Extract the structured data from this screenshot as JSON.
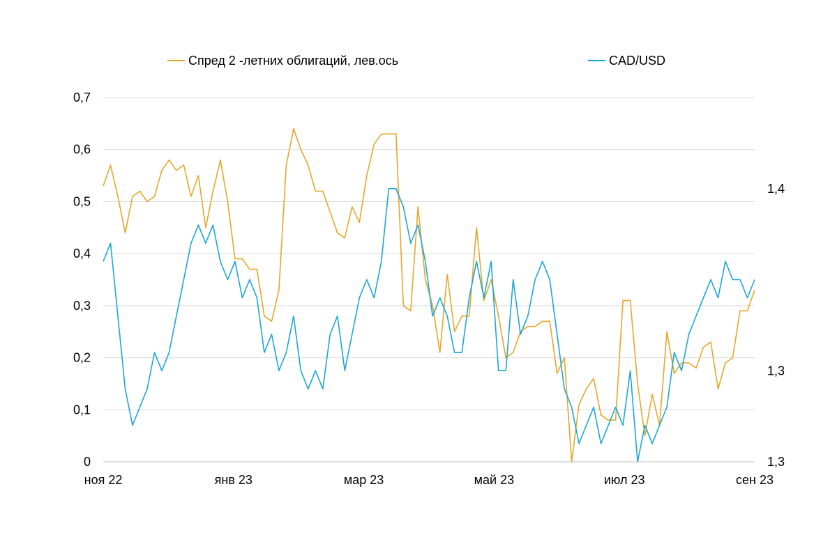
{
  "chart_data": {
    "type": "line",
    "title": "",
    "xlabel": "",
    "ylabel": "",
    "x_ticks": [
      "ноя 22",
      "янв 23",
      "мар 23",
      "май 23",
      "июл 23",
      "сен 23"
    ],
    "y_left": {
      "ticks": [
        "0",
        "0,1",
        "0,2",
        "0,3",
        "0,4",
        "0,5",
        "0,6",
        "0,7"
      ],
      "range": [
        0,
        0.7
      ]
    },
    "y_right": {
      "ticks": [
        "1,3",
        "1,3",
        "1,4"
      ],
      "tick_values": [
        1.25,
        1.3,
        1.4
      ],
      "range": [
        1.25,
        1.45
      ]
    },
    "grid": "horizontal",
    "legend": "top",
    "series": [
      {
        "name": "Спред 2 -летних облигаций, лев.ось",
        "axis": "left",
        "color": "#e8a628",
        "points": [
          [
            "ноя 22",
            0.53
          ],
          [
            "",
            0.57
          ],
          [
            "",
            0.51
          ],
          [
            "",
            0.44
          ],
          [
            "",
            0.51
          ],
          [
            "",
            0.52
          ],
          [
            "",
            0.5
          ],
          [
            "",
            0.51
          ],
          [
            "",
            0.56
          ],
          [
            "",
            0.58
          ],
          [
            "",
            0.56
          ],
          [
            "",
            0.57
          ],
          [
            "",
            0.51
          ],
          [
            "",
            0.55
          ],
          [
            "",
            0.45
          ],
          [
            "",
            0.52
          ],
          [
            "",
            0.58
          ],
          [
            "",
            0.5
          ],
          [
            "",
            0.39
          ],
          [
            "",
            0.39
          ],
          [
            "",
            0.37
          ],
          [
            "янв 23",
            0.37
          ],
          [
            "",
            0.28
          ],
          [
            "",
            0.27
          ],
          [
            "",
            0.33
          ],
          [
            "",
            0.57
          ],
          [
            "",
            0.64
          ],
          [
            "",
            0.6
          ],
          [
            "",
            0.57
          ],
          [
            "",
            0.52
          ],
          [
            "",
            0.52
          ],
          [
            "",
            0.48
          ],
          [
            "",
            0.44
          ],
          [
            "",
            0.43
          ],
          [
            "",
            0.49
          ],
          [
            "",
            0.46
          ],
          [
            "",
            0.55
          ],
          [
            "",
            0.61
          ],
          [
            "",
            0.63
          ],
          [
            "",
            0.63
          ],
          [
            "мар 23",
            0.63
          ],
          [
            "",
            0.3
          ],
          [
            "",
            0.29
          ],
          [
            "",
            0.49
          ],
          [
            "",
            0.35
          ],
          [
            "",
            0.3
          ],
          [
            "",
            0.21
          ],
          [
            "",
            0.36
          ],
          [
            "",
            0.25
          ],
          [
            "",
            0.28
          ],
          [
            "",
            0.28
          ],
          [
            "",
            0.45
          ],
          [
            "",
            0.31
          ],
          [
            "",
            0.35
          ],
          [
            "",
            0.28
          ],
          [
            "май 23",
            0.2
          ],
          [
            "",
            0.21
          ],
          [
            "",
            0.25
          ],
          [
            "",
            0.26
          ],
          [
            "",
            0.26
          ],
          [
            "",
            0.27
          ],
          [
            "",
            0.27
          ],
          [
            "",
            0.17
          ],
          [
            "",
            0.2
          ],
          [
            "",
            0.0
          ],
          [
            "",
            0.11
          ],
          [
            "",
            0.14
          ],
          [
            "",
            0.16
          ],
          [
            "",
            0.09
          ],
          [
            "",
            0.08
          ],
          [
            "",
            0.08
          ],
          [
            "",
            0.31
          ],
          [
            "июл 23",
            0.31
          ],
          [
            "",
            0.15
          ],
          [
            "",
            0.05
          ],
          [
            "",
            0.13
          ],
          [
            "",
            0.07
          ],
          [
            "",
            0.25
          ],
          [
            "",
            0.17
          ],
          [
            "",
            0.19
          ],
          [
            "",
            0.19
          ],
          [
            "",
            0.18
          ],
          [
            "",
            0.22
          ],
          [
            "",
            0.23
          ],
          [
            "",
            0.14
          ],
          [
            "",
            0.19
          ],
          [
            "",
            0.2
          ],
          [
            "",
            0.29
          ],
          [
            "",
            0.29
          ],
          [
            "сен 23",
            0.33
          ]
        ]
      },
      {
        "name": "CAD/USD",
        "axis": "right",
        "color": "#1aa7d6",
        "points": [
          [
            "ноя 22",
            1.36
          ],
          [
            "",
            1.37
          ],
          [
            "",
            1.33
          ],
          [
            "",
            1.29
          ],
          [
            "",
            1.27
          ],
          [
            "",
            1.28
          ],
          [
            "",
            1.29
          ],
          [
            "",
            1.31
          ],
          [
            "",
            1.3
          ],
          [
            "",
            1.31
          ],
          [
            "",
            1.33
          ],
          [
            "",
            1.35
          ],
          [
            "",
            1.37
          ],
          [
            "",
            1.38
          ],
          [
            "",
            1.37
          ],
          [
            "",
            1.38
          ],
          [
            "",
            1.36
          ],
          [
            "",
            1.35
          ],
          [
            "",
            1.36
          ],
          [
            "",
            1.34
          ],
          [
            "",
            1.35
          ],
          [
            "янв 23",
            1.34
          ],
          [
            "",
            1.31
          ],
          [
            "",
            1.32
          ],
          [
            "",
            1.3
          ],
          [
            "",
            1.31
          ],
          [
            "",
            1.33
          ],
          [
            "",
            1.3
          ],
          [
            "",
            1.29
          ],
          [
            "",
            1.3
          ],
          [
            "",
            1.29
          ],
          [
            "",
            1.32
          ],
          [
            "",
            1.33
          ],
          [
            "",
            1.3
          ],
          [
            "",
            1.32
          ],
          [
            "",
            1.34
          ],
          [
            "",
            1.35
          ],
          [
            "",
            1.34
          ],
          [
            "",
            1.36
          ],
          [
            "",
            1.4
          ],
          [
            "мар 23",
            1.4
          ],
          [
            "",
            1.39
          ],
          [
            "",
            1.37
          ],
          [
            "",
            1.38
          ],
          [
            "",
            1.36
          ],
          [
            "",
            1.33
          ],
          [
            "",
            1.34
          ],
          [
            "",
            1.33
          ],
          [
            "",
            1.31
          ],
          [
            "",
            1.31
          ],
          [
            "",
            1.34
          ],
          [
            "",
            1.36
          ],
          [
            "",
            1.34
          ],
          [
            "",
            1.36
          ],
          [
            "",
            1.3
          ],
          [
            "май 23",
            1.3
          ],
          [
            "",
            1.35
          ],
          [
            "",
            1.32
          ],
          [
            "",
            1.33
          ],
          [
            "",
            1.35
          ],
          [
            "",
            1.36
          ],
          [
            "",
            1.35
          ],
          [
            "",
            1.32
          ],
          [
            "",
            1.29
          ],
          [
            "",
            1.28
          ],
          [
            "",
            1.26
          ],
          [
            "",
            1.27
          ],
          [
            "",
            1.28
          ],
          [
            "",
            1.26
          ],
          [
            "",
            1.27
          ],
          [
            "",
            1.28
          ],
          [
            "",
            1.27
          ],
          [
            "июл 23",
            1.3
          ],
          [
            "",
            1.25
          ],
          [
            "",
            1.27
          ],
          [
            "",
            1.26
          ],
          [
            "",
            1.27
          ],
          [
            "",
            1.28
          ],
          [
            "",
            1.31
          ],
          [
            "",
            1.3
          ],
          [
            "",
            1.32
          ],
          [
            "",
            1.33
          ],
          [
            "",
            1.34
          ],
          [
            "",
            1.35
          ],
          [
            "",
            1.34
          ],
          [
            "",
            1.36
          ],
          [
            "",
            1.35
          ],
          [
            "",
            1.35
          ],
          [
            "",
            1.34
          ],
          [
            "сен 23",
            1.35
          ]
        ]
      }
    ]
  }
}
